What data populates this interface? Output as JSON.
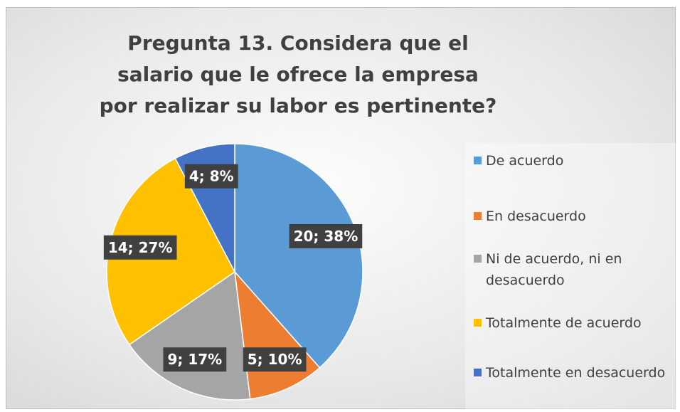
{
  "chart_data": {
    "type": "pie",
    "title": "Pregunta 13. Considera que el salario que le ofrece la empresa por realizar su labor es pertinente?",
    "categories": [
      "De acuerdo",
      "En desacuerdo",
      "Ni de acuerdo, ni en desacuerdo",
      "Totalmente de acuerdo",
      "Totalmente en desacuerdo"
    ],
    "values": [
      20,
      5,
      9,
      14,
      4
    ],
    "value_labels": [
      "20; 38%",
      "5; 10%",
      "9; 17%",
      "14; 27%",
      "4; 8%"
    ],
    "colors": [
      "#5b9bd5",
      "#ed7d31",
      "#a5a5a5",
      "#ffc000",
      "#4472c4"
    ],
    "legend": "right"
  }
}
